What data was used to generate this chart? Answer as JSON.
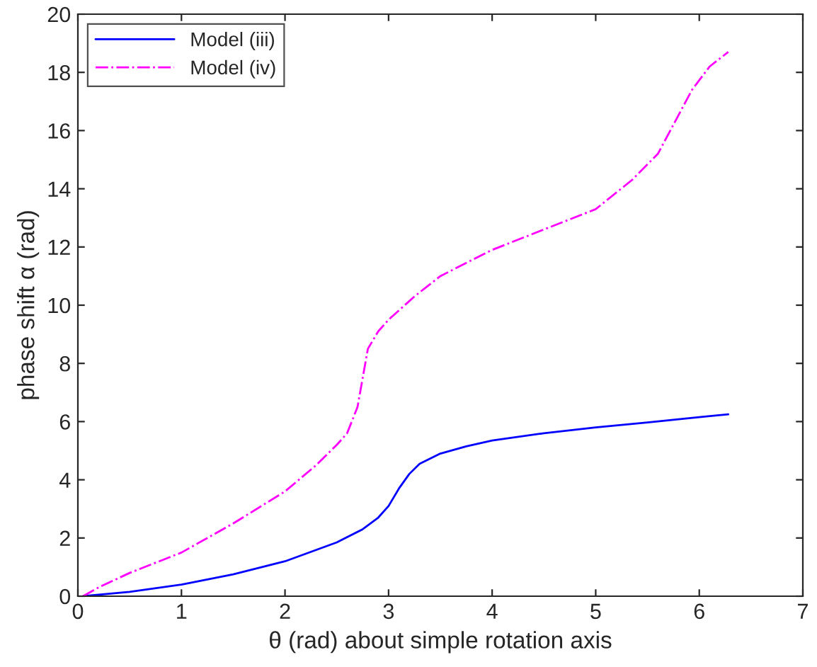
{
  "chart_data": {
    "type": "line",
    "xlabel": "θ (rad) about simple rotation axis",
    "ylabel": "phase shift α (rad)",
    "xlim": [
      0,
      7
    ],
    "ylim": [
      0,
      20
    ],
    "xticks": [
      0,
      1,
      2,
      3,
      4,
      5,
      6,
      7
    ],
    "yticks": [
      0,
      2,
      4,
      6,
      8,
      10,
      12,
      14,
      16,
      18,
      20
    ],
    "grid": false,
    "legend": "top left",
    "series": [
      {
        "name": "Model (iii)",
        "color": "#0000ff",
        "line_style": "solid",
        "x": [
          0.05,
          0.5,
          1,
          1.5,
          2,
          2.5,
          2.75,
          2.9,
          3.0,
          3.1,
          3.2,
          3.3,
          3.5,
          3.75,
          4,
          4.5,
          5,
          5.5,
          6,
          6.28
        ],
        "values": [
          0,
          0.15,
          0.4,
          0.75,
          1.2,
          1.85,
          2.3,
          2.7,
          3.1,
          3.7,
          4.2,
          4.55,
          4.9,
          5.15,
          5.35,
          5.6,
          5.8,
          5.97,
          6.15,
          6.25
        ]
      },
      {
        "name": "Model (iv)",
        "color": "#ff00ff",
        "line_style": "dashdot",
        "x": [
          0.05,
          0.2,
          0.5,
          1,
          1.5,
          2,
          2.3,
          2.5,
          2.6,
          2.7,
          2.75,
          2.8,
          2.9,
          3.0,
          3.25,
          3.5,
          4,
          4.5,
          5,
          5.35,
          5.6,
          5.75,
          5.93,
          6.1,
          6.28
        ],
        "values": [
          0,
          0.3,
          0.8,
          1.5,
          2.5,
          3.6,
          4.5,
          5.2,
          5.6,
          6.5,
          7.5,
          8.5,
          9.1,
          9.5,
          10.3,
          11.0,
          11.9,
          12.6,
          13.3,
          14.3,
          15.2,
          16.2,
          17.4,
          18.2,
          18.7
        ]
      }
    ]
  }
}
